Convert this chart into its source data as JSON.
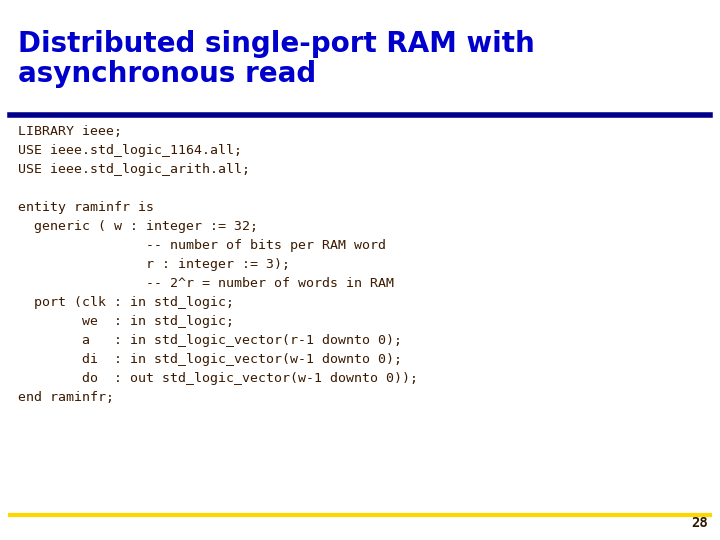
{
  "title_line1": "Distributed single-port RAM with",
  "title_line2": "asynchronous read",
  "title_color": "#0000CC",
  "title_fontsize": 20,
  "header_line_color": "#00008B",
  "footer_line_color": "#FFD700",
  "page_number": "28",
  "page_number_color": "#2a1a00",
  "bg_color": "#FFFFFF",
  "code_color": "#3B1A00",
  "code_fontsize": 9.5,
  "code_lines": [
    "LIBRARY ieee;",
    "USE ieee.std_logic_1164.all;",
    "USE ieee.std_logic_arith.all;",
    "",
    "entity raminfr is",
    "  generic ( w : integer := 32;",
    "                -- number of bits per RAM word",
    "                r : integer := 3);",
    "                -- 2^r = number of words in RAM",
    "  port (clk : in std_logic;",
    "        we  : in std_logic;",
    "        a   : in std_logic_vector(r-1 downto 0);",
    "        di  : in std_logic_vector(w-1 downto 0);",
    "        do  : out std_logic_vector(w-1 downto 0));",
    "end raminfr;"
  ]
}
